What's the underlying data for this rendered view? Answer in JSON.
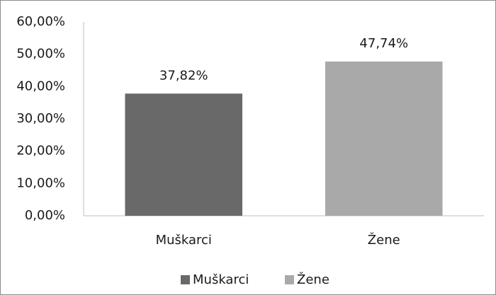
{
  "chart_data": {
    "type": "bar",
    "categories": [
      "Muškarci",
      "Žene"
    ],
    "values": [
      37.82,
      47.74
    ],
    "value_labels": [
      "37,82%",
      "47,74%"
    ],
    "colors": [
      "#696969",
      "#a9a9a9"
    ],
    "ylim": [
      0,
      60
    ],
    "yticks": [
      {
        "value": 0,
        "label": "0,00%"
      },
      {
        "value": 10,
        "label": "10,00%"
      },
      {
        "value": 20,
        "label": "20,00%"
      },
      {
        "value": 30,
        "label": "30,00%"
      },
      {
        "value": 40,
        "label": "40,00%"
      },
      {
        "value": 50,
        "label": "50,00%"
      },
      {
        "value": 60,
        "label": "60,00%"
      }
    ],
    "grid": false,
    "legend": "bottom"
  }
}
